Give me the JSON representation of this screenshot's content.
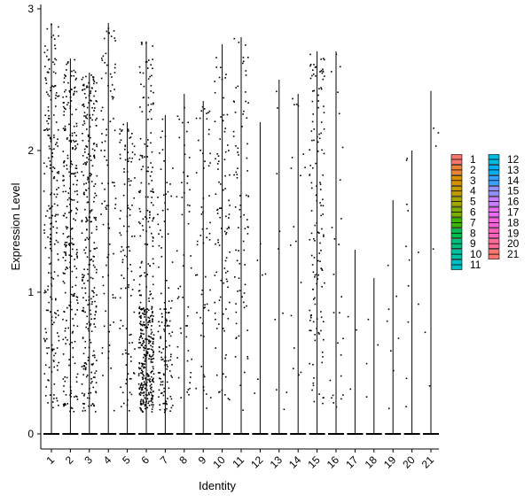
{
  "chart_data": {
    "type": "scatter",
    "subtype": "violin-jitter",
    "xlabel": "Identity",
    "ylabel": "Expression Level",
    "ylim": [
      0,
      3
    ],
    "yticks": [
      0,
      1,
      2,
      3
    ],
    "categories": [
      "1",
      "2",
      "3",
      "4",
      "5",
      "6",
      "7",
      "8",
      "9",
      "10",
      "11",
      "12",
      "13",
      "14",
      "15",
      "16",
      "17",
      "18",
      "19",
      "20",
      "21"
    ],
    "max_values": [
      2.9,
      2.65,
      2.55,
      2.9,
      2.2,
      2.77,
      2.25,
      2.4,
      2.35,
      2.75,
      2.8,
      2.2,
      2.5,
      2.4,
      2.7,
      2.7,
      1.3,
      1.1,
      1.65,
      2.0,
      2.42
    ],
    "point_counts": [
      220,
      260,
      300,
      90,
      110,
      420,
      130,
      55,
      60,
      95,
      80,
      6,
      10,
      18,
      140,
      26,
      3,
      4,
      8,
      12,
      6
    ],
    "grid": false,
    "legend_position": "right",
    "legend": {
      "columns": [
        [
          "1",
          "2",
          "3",
          "4",
          "5",
          "6",
          "7",
          "8",
          "9",
          "10",
          "11"
        ],
        [
          "12",
          "13",
          "14",
          "15",
          "16",
          "17",
          "18",
          "19",
          "20",
          "21"
        ]
      ],
      "colors": [
        "#F8766D",
        "#EB8335",
        "#D89000",
        "#C09B00",
        "#A3A500",
        "#7CAE00",
        "#39B600",
        "#00BB4E",
        "#00BF7D",
        "#00C1A3",
        "#00BFC4",
        "#00BAE0",
        "#00B0F6",
        "#35A2FF",
        "#9590FF",
        "#C77CFF",
        "#E76BF3",
        "#FA62DB",
        "#FF62BC",
        "#FF6A98",
        "#F8766D"
      ]
    }
  }
}
